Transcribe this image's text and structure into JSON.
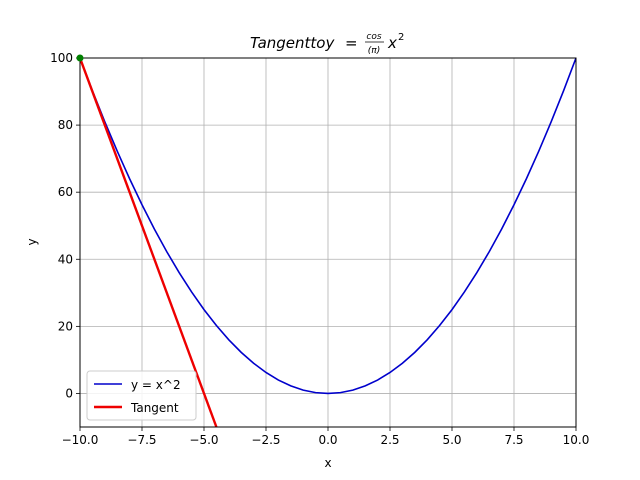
{
  "chart_data": {
    "type": "line",
    "title": {
      "prefix": "Tangenttoy",
      "equals": "=",
      "frac_num": "cos",
      "frac_den": "(π)",
      "var": "x",
      "exp": "2"
    },
    "xlabel": "x",
    "ylabel": "y",
    "xlim": [
      -10,
      10
    ],
    "ylim": [
      -10,
      100
    ],
    "x_ticks": [
      -10,
      -7.5,
      -5,
      -2.5,
      0,
      2.5,
      5,
      7.5,
      10
    ],
    "x_tick_labels": [
      "−10.0",
      "−7.5",
      "−5.0",
      "−2.5",
      "0.0",
      "2.5",
      "5.0",
      "7.5",
      "10.0"
    ],
    "y_ticks": [
      0,
      20,
      40,
      60,
      80,
      100
    ],
    "y_tick_labels": [
      "0",
      "20",
      "40",
      "60",
      "80",
      "100"
    ],
    "grid": true,
    "legend_position": "lower-left",
    "series": [
      {
        "name": "y = x^2",
        "color": "#0000cc",
        "x": [
          -10,
          -9.5,
          -9,
          -8.5,
          -8,
          -7.5,
          -7,
          -6.5,
          -6,
          -5.5,
          -5,
          -4.5,
          -4,
          -3.5,
          -3,
          -2.5,
          -2,
          -1.5,
          -1,
          -0.5,
          0,
          0.5,
          1,
          1.5,
          2,
          2.5,
          3,
          3.5,
          4,
          4.5,
          5,
          5.5,
          6,
          6.5,
          7,
          7.5,
          8,
          8.5,
          9,
          9.5,
          10
        ],
        "y": [
          100,
          90.25,
          81,
          72.25,
          64,
          56.25,
          49,
          42.25,
          36,
          30.25,
          25,
          20.25,
          16,
          12.25,
          9,
          6.25,
          4,
          2.25,
          1,
          0.25,
          0,
          0.25,
          1,
          2.25,
          4,
          6.25,
          9,
          12.25,
          16,
          20.25,
          25,
          30.25,
          36,
          42.25,
          49,
          56.25,
          64,
          72.25,
          81,
          90.25,
          100
        ]
      },
      {
        "name": "Tangent",
        "color": "#ee0000",
        "x": [
          -10,
          -4.5
        ],
        "y": [
          100,
          -10
        ]
      }
    ],
    "point": {
      "x": -10,
      "y": 100,
      "color": "#008000"
    }
  }
}
